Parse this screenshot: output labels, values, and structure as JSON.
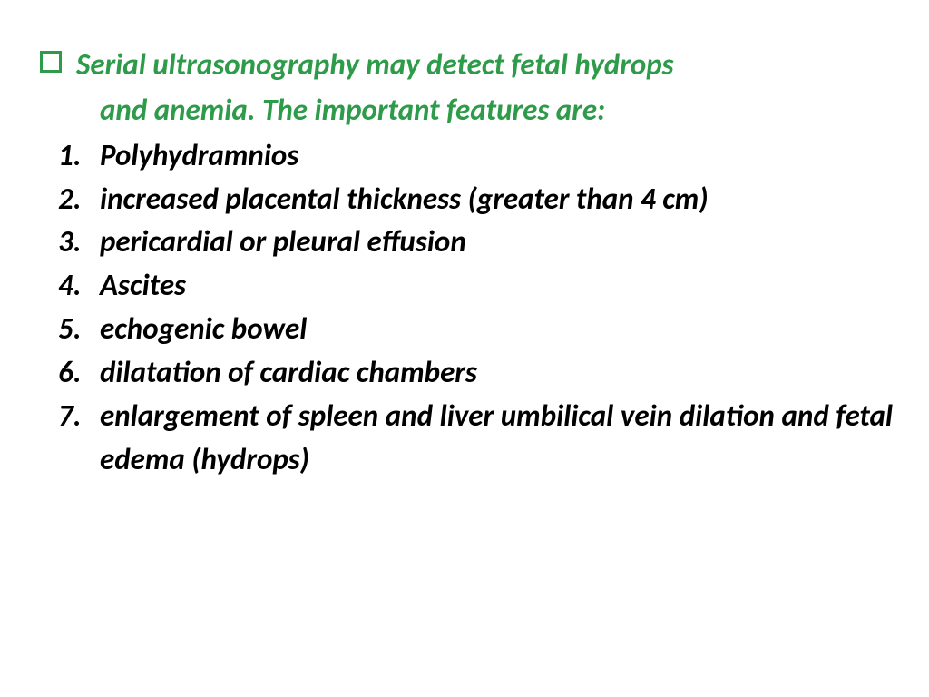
{
  "heading": {
    "line1": "Serial ultrasonography may detect fetal hydrops",
    "line2": "and anemia. The important features are:"
  },
  "items": [
    {
      "num": "1.",
      "text": "Polyhydramnios"
    },
    {
      "num": "2.",
      "text": " increased placental thickness (greater than 4 cm)"
    },
    {
      "num": "3.",
      "text": " pericardial or pleural effusion"
    },
    {
      "num": "4.",
      "text": "Ascites"
    },
    {
      "num": "5.",
      "text": "echogenic bowel"
    },
    {
      "num": "6.",
      "text": "dilatation of cardiac chambers"
    },
    {
      "num": "7.",
      "text": "enlargement of spleen and liver umbilical vein dilation and fetal edema (hydrops)"
    }
  ],
  "colors": {
    "heading": "#2e9b4a",
    "body": "#000000",
    "bg": "#ffffff"
  },
  "typography": {
    "fontsize_pt": 25,
    "weight": "bold",
    "style": "italic",
    "family": "Calibri"
  }
}
